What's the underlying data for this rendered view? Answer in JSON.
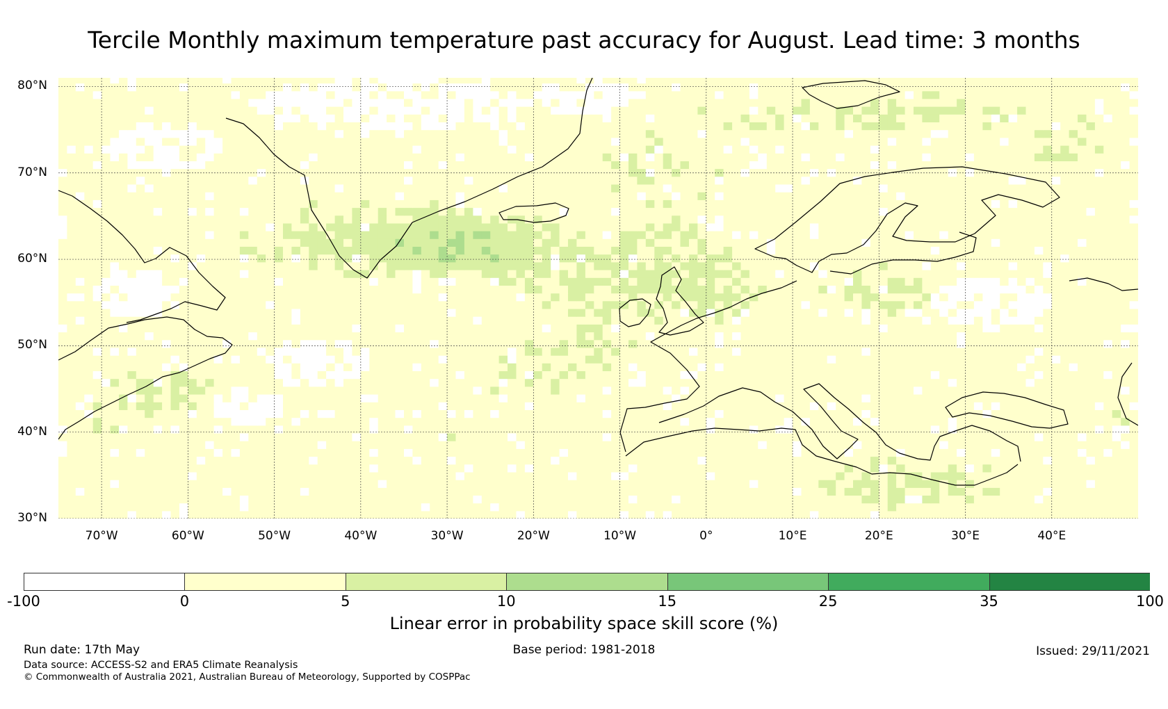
{
  "title": "Tercile Monthly maximum temperature past accuracy for August. Lead time: 3 months",
  "map": {
    "projection": "equirectangular",
    "lon_range": [
      -75,
      50
    ],
    "lat_range": [
      30,
      81
    ],
    "grid": true,
    "lat_ticks": [
      {
        "value": 80,
        "label": "80°N"
      },
      {
        "value": 70,
        "label": "70°N"
      },
      {
        "value": 60,
        "label": "60°N"
      },
      {
        "value": 50,
        "label": "50°N"
      },
      {
        "value": 40,
        "label": "40°N"
      },
      {
        "value": 30,
        "label": "30°N"
      }
    ],
    "lon_ticks": [
      {
        "value": -70,
        "label": "70°W"
      },
      {
        "value": -60,
        "label": "60°W"
      },
      {
        "value": -50,
        "label": "50°W"
      },
      {
        "value": -40,
        "label": "40°W"
      },
      {
        "value": -30,
        "label": "30°W"
      },
      {
        "value": -20,
        "label": "20°W"
      },
      {
        "value": -10,
        "label": "10°W"
      },
      {
        "value": 0,
        "label": "0°"
      },
      {
        "value": 10,
        "label": "10°E"
      },
      {
        "value": 20,
        "label": "20°E"
      },
      {
        "value": 30,
        "label": "30°E"
      },
      {
        "value": 40,
        "label": "40°E"
      }
    ]
  },
  "colorbar": {
    "label": "Linear error in probability space skill score (%)",
    "ticks": [
      "-100",
      "0",
      "5",
      "10",
      "15",
      "25",
      "35",
      "100"
    ],
    "colors": [
      "#ffffff",
      "#ffffcc",
      "#d9f0a3",
      "#addd8e",
      "#78c679",
      "#41ab5d",
      "#238443"
    ]
  },
  "footer": {
    "run_date": "Run date: 17th May",
    "base_period": "Base period: 1981-2018",
    "issued": "Issued: 29/11/2021",
    "source": "Data source: ACCESS-S2 and ERA5 Climate Reanalysis",
    "copyright": "© Commonwealth of Australia 2021, Australian Bureau of Meteorology, Supported by COSPPac"
  }
}
